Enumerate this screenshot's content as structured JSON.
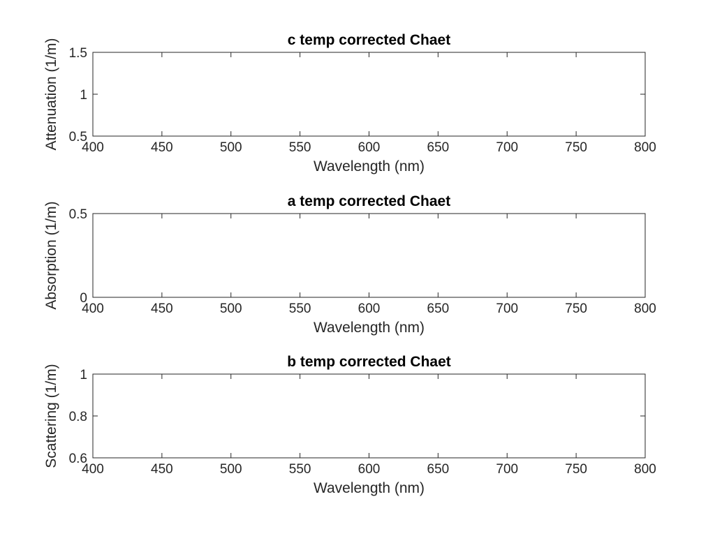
{
  "colors": {
    "series": "#0072BD"
  },
  "chart_data": [
    {
      "type": "line",
      "title": "c temp corrected Chaet",
      "xlabel": "Wavelength (nm)",
      "ylabel": "Attenuation (1/m)",
      "xlim": [
        400,
        800
      ],
      "ylim": [
        0.5,
        1.5
      ],
      "xticks": [
        400,
        450,
        500,
        550,
        600,
        650,
        700,
        750,
        800
      ],
      "xtick_labels": [
        "400",
        "450",
        "500",
        "550",
        "600",
        "650",
        "700",
        "750",
        "800"
      ],
      "yticks": [
        0.5,
        1,
        1.5
      ],
      "ytick_labels": [
        "0.5",
        "1",
        "1.5"
      ],
      "grid": true,
      "series": [
        {
          "x": [
            402,
            410,
            420,
            430,
            440,
            450,
            460,
            470,
            480,
            490,
            500,
            510,
            520,
            530,
            540,
            550,
            560,
            570,
            580,
            590,
            600,
            610,
            620,
            630,
            640,
            650,
            660,
            670,
            680,
            690,
            700,
            710,
            720,
            730,
            740,
            750,
            755
          ],
          "y": [
            1.24,
            1.22,
            1.19,
            1.16,
            1.12,
            1.1,
            1.08,
            1.06,
            1.04,
            1.025,
            1.01,
            0.995,
            0.985,
            0.975,
            0.965,
            0.955,
            0.95,
            0.945,
            0.94,
            0.935,
            0.93,
            0.92,
            0.91,
            0.9,
            0.895,
            0.89,
            0.875,
            0.865,
            0.87,
            0.875,
            0.88,
            0.88,
            0.88,
            0.88,
            0.88,
            0.87,
            0.865
          ]
        }
      ]
    },
    {
      "type": "line",
      "title": "a temp corrected Chaet",
      "xlabel": "Wavelength (nm)",
      "ylabel": "Absorption (1/m)",
      "xlim": [
        400,
        800
      ],
      "ylim": [
        0,
        0.5
      ],
      "xticks": [
        400,
        450,
        500,
        550,
        600,
        650,
        700,
        750,
        800
      ],
      "xtick_labels": [
        "400",
        "450",
        "500",
        "550",
        "600",
        "650",
        "700",
        "750",
        "800"
      ],
      "yticks": [
        0,
        0.5
      ],
      "ytick_labels": [
        "0",
        "0.5"
      ],
      "grid": true,
      "series": [
        {
          "x": [
            402,
            410,
            420,
            430,
            440,
            450,
            460,
            470,
            480,
            490,
            500,
            510,
            520,
            530,
            540,
            550,
            560,
            570,
            580,
            590,
            600,
            610,
            620,
            630,
            640,
            650,
            655,
            660,
            665,
            670,
            675,
            680,
            685,
            690,
            695,
            700,
            710,
            720,
            730,
            740,
            750,
            755
          ],
          "y": [
            0.405,
            0.398,
            0.39,
            0.38,
            0.365,
            0.345,
            0.325,
            0.305,
            0.285,
            0.265,
            0.248,
            0.228,
            0.21,
            0.195,
            0.18,
            0.165,
            0.15,
            0.143,
            0.14,
            0.135,
            0.13,
            0.132,
            0.135,
            0.138,
            0.139,
            0.14,
            0.15,
            0.17,
            0.19,
            0.205,
            0.208,
            0.2,
            0.175,
            0.15,
            0.125,
            0.105,
            0.09,
            0.085,
            0.078,
            0.068,
            0.065,
            0.067
          ]
        }
      ]
    },
    {
      "type": "line",
      "title": "b temp corrected Chaet",
      "xlabel": "Wavelength (nm)",
      "ylabel": "Scattering (1/m)",
      "xlim": [
        400,
        800
      ],
      "ylim": [
        0.6,
        1
      ],
      "xticks": [
        400,
        450,
        500,
        550,
        600,
        650,
        700,
        750,
        800
      ],
      "xtick_labels": [
        "400",
        "450",
        "500",
        "550",
        "600",
        "650",
        "700",
        "750",
        "800"
      ],
      "yticks": [
        0.6,
        0.8,
        1
      ],
      "ytick_labels": [
        "0.6",
        "0.8",
        "1"
      ],
      "grid": true,
      "series": [
        {
          "x": [
            402,
            410,
            415,
            420,
            430,
            440,
            450,
            460,
            470,
            480,
            490,
            500,
            510,
            520,
            530,
            540,
            550,
            560,
            570,
            580,
            590,
            600,
            610,
            620,
            630,
            640,
            650,
            655,
            660,
            665,
            670,
            675,
            680,
            685,
            690,
            700,
            710,
            720,
            730,
            740,
            745,
            750,
            755
          ],
          "y": [
            0.838,
            0.825,
            0.818,
            0.805,
            0.785,
            0.768,
            0.762,
            0.76,
            0.762,
            0.766,
            0.767,
            0.768,
            0.772,
            0.776,
            0.78,
            0.786,
            0.796,
            0.806,
            0.81,
            0.808,
            0.806,
            0.803,
            0.792,
            0.78,
            0.77,
            0.765,
            0.755,
            0.735,
            0.71,
            0.685,
            0.67,
            0.675,
            0.69,
            0.715,
            0.745,
            0.78,
            0.795,
            0.8,
            0.806,
            0.812,
            0.815,
            0.812,
            0.805
          ]
        }
      ]
    }
  ]
}
